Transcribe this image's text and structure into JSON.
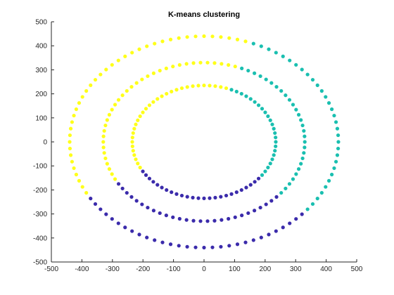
{
  "chart_data": {
    "type": "scatter",
    "title": "K-means clustering",
    "xlabel": "",
    "ylabel": "",
    "xlim": [
      -500,
      500
    ],
    "ylim": [
      -500,
      500
    ],
    "x_ticks": [
      "-500",
      "-400",
      "-300",
      "-200",
      "-100",
      "0",
      "100",
      "200",
      "300",
      "400",
      "500"
    ],
    "y_ticks": [
      "500",
      "400",
      "300",
      "200",
      "100",
      "0",
      "-100",
      "-200",
      "-300",
      "-400",
      "-500"
    ],
    "grid": false,
    "rings": [
      {
        "radius_x": 235,
        "radius_y": 235,
        "points": 80
      },
      {
        "radius_x": 330,
        "radius_y": 330,
        "points": 90
      },
      {
        "radius_x": 440,
        "radius_y": 440,
        "points": 100
      }
    ],
    "clusters": [
      {
        "color": "#FFFF1A",
        "angle_range_deg": [
          120,
          210
        ]
      },
      {
        "color": "#1ABFB0",
        "angle_range_deg": [
          -40,
          72
        ]
      },
      {
        "color": "#3B2BAB",
        "angle_range_deg": [
          210,
          320
        ]
      }
    ],
    "marker": {
      "shape": "circle",
      "filled": true
    }
  }
}
